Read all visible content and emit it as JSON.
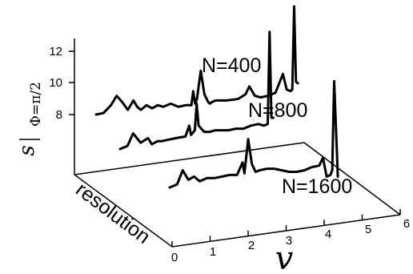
{
  "chart_data": {
    "type": "line",
    "style": "3d-waterfall",
    "xlabel": "v",
    "ylabel_main": "s",
    "ylabel_sub": "Φ=π/2",
    "depth_label": "resolution",
    "x_ticks": [
      "0",
      "1",
      "2",
      "3",
      "4",
      "5",
      "6"
    ],
    "y_ticks": [
      "8",
      "10",
      "12"
    ],
    "xlim": [
      0,
      6
    ],
    "ylim": [
      6,
      13
    ],
    "series": [
      {
        "name": "N=400",
        "x": [
          0.0,
          0.2,
          0.4,
          0.55,
          0.7,
          0.85,
          1.0,
          1.1,
          1.2,
          1.35,
          1.5,
          1.65,
          1.8,
          2.0,
          2.2,
          2.4,
          2.55,
          2.6,
          2.65,
          2.7,
          2.8,
          2.9,
          3.0,
          3.05,
          3.1,
          3.2,
          3.5,
          3.8,
          4.0,
          4.1,
          4.25,
          4.4,
          4.6,
          4.8,
          5.0,
          5.1,
          5.2,
          5.25,
          5.3,
          5.35,
          5.4
        ],
        "y": [
          8.0,
          8.1,
          8.6,
          9.2,
          8.8,
          8.3,
          8.9,
          8.5,
          8.3,
          8.6,
          8.4,
          8.6,
          8.5,
          8.7,
          8.5,
          8.6,
          8.6,
          9.5,
          8.7,
          9.0,
          10.8,
          9.3,
          8.8,
          8.7,
          8.8,
          8.9,
          8.9,
          9.0,
          9.3,
          9.8,
          9.2,
          9.1,
          9.2,
          9.4,
          10.6,
          9.6,
          9.5,
          9.6,
          16.0,
          10.1,
          10.0
        ]
      },
      {
        "name": "N=800",
        "x": [
          0.0,
          0.2,
          0.35,
          0.55,
          0.75,
          0.85,
          1.0,
          1.1,
          1.3,
          1.5,
          1.75,
          1.85,
          1.9,
          2.0,
          2.05,
          2.1,
          2.25,
          2.4,
          2.55,
          2.7,
          2.9,
          3.1,
          3.3,
          3.5,
          3.7,
          3.85,
          3.95,
          4.0,
          4.05,
          4.1
        ],
        "y": [
          8.0,
          8.2,
          9.0,
          8.4,
          8.7,
          8.3,
          8.5,
          8.5,
          8.6,
          8.7,
          8.8,
          9.5,
          8.9,
          9.2,
          10.9,
          9.5,
          9.1,
          9.1,
          9.2,
          9.2,
          9.2,
          9.3,
          9.3,
          9.5,
          9.6,
          9.5,
          9.6,
          15.5,
          10.0,
          10.0
        ]
      },
      {
        "name": "N=1600",
        "x": [
          0.0,
          0.2,
          0.35,
          0.5,
          0.65,
          0.8,
          1.0,
          1.2,
          1.4,
          1.6,
          1.8,
          1.95,
          2.0,
          2.1,
          2.2,
          2.3,
          2.4,
          2.6,
          2.8,
          3.0,
          3.2,
          3.4,
          3.6,
          3.8,
          4.0,
          4.1,
          4.2,
          4.3,
          4.35,
          4.4,
          4.5
        ],
        "y": [
          8.0,
          8.2,
          9.1,
          8.5,
          8.7,
          8.4,
          8.6,
          8.6,
          8.7,
          8.8,
          8.8,
          9.6,
          8.9,
          11.1,
          9.5,
          9.0,
          9.1,
          9.2,
          9.2,
          9.1,
          9.0,
          9.0,
          9.1,
          9.3,
          9.4,
          9.9,
          8.7,
          8.8,
          9.1,
          14.8,
          8.7
        ]
      }
    ]
  }
}
